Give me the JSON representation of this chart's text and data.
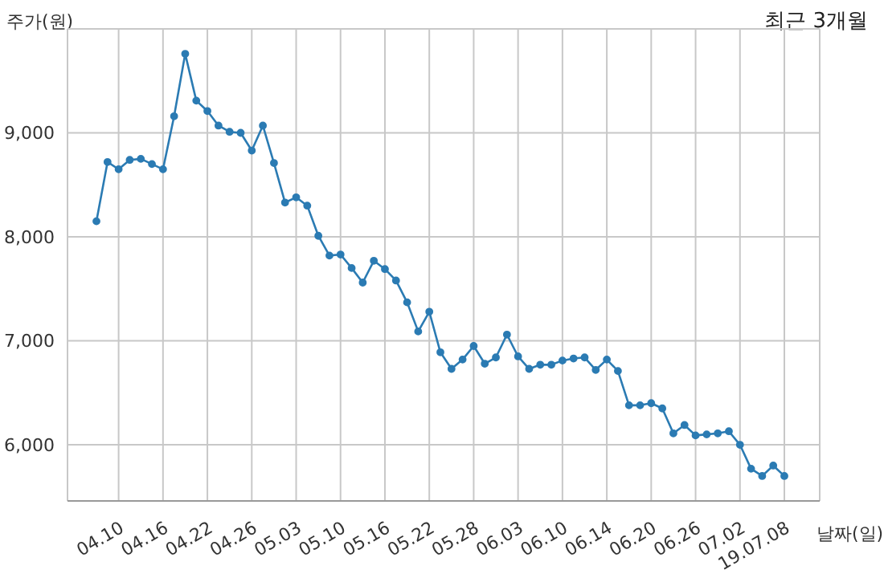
{
  "chart_data": {
    "type": "line",
    "title": "최근 3개월",
    "xlabel": "날짜(일)",
    "ylabel": "주가(원)",
    "categories": [
      null,
      null,
      "04.10",
      null,
      null,
      null,
      "04.16",
      null,
      null,
      null,
      "04.22",
      null,
      null,
      null,
      "04.26",
      null,
      null,
      null,
      "05.03",
      null,
      null,
      null,
      "05.10",
      null,
      null,
      null,
      "05.16",
      null,
      null,
      null,
      "05.22",
      null,
      null,
      null,
      "05.28",
      null,
      null,
      null,
      "06.03",
      null,
      null,
      null,
      "06.10",
      null,
      null,
      null,
      "06.14",
      null,
      null,
      null,
      "06.20",
      null,
      null,
      null,
      "06.26",
      null,
      null,
      null,
      "07.02",
      null,
      null,
      null,
      "19.07.08"
    ],
    "series": [
      {
        "color": "#2b7bb3",
        "values": [
          8150,
          8720,
          8650,
          8740,
          8750,
          8700,
          8650,
          9160,
          9760,
          9310,
          9210,
          9070,
          9010,
          9000,
          8830,
          9070,
          8710,
          8330,
          8380,
          8300,
          8010,
          7820,
          7830,
          7700,
          7560,
          7770,
          7690,
          7580,
          7370,
          7090,
          7280,
          6890,
          6730,
          6820,
          6950,
          6780,
          6840,
          7060,
          6850,
          6730,
          6770,
          6770,
          6810,
          6830,
          6840,
          6720,
          6820,
          6710,
          6380,
          6380,
          6400,
          6350,
          6110,
          6190,
          6090,
          6100,
          6110,
          6130,
          6000,
          5770,
          5700,
          5800,
          5700
        ]
      }
    ],
    "ylim": [
      5460,
      10000
    ],
    "yticks": [
      {
        "value": 6000,
        "label": "6,000"
      },
      {
        "value": 7000,
        "label": "7,000"
      },
      {
        "value": 8000,
        "label": "8,000"
      },
      {
        "value": 9000,
        "label": "9,000"
      }
    ],
    "grid": true,
    "marker": "circle",
    "line_style": "solid"
  }
}
